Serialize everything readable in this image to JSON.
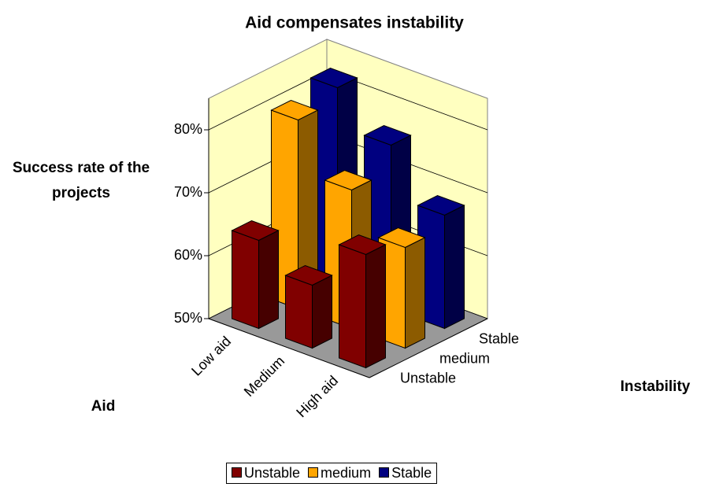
{
  "chart_data": {
    "type": "bar3d",
    "title": "Aid compensates instability",
    "y_label": "Success rate of the projects",
    "x_label": "Aid",
    "z_label": "Instability",
    "categories": [
      "Low aid",
      "Medium",
      "High aid"
    ],
    "series": [
      {
        "name": "Unstable",
        "color": "#800000",
        "values": [
          64,
          60,
          68
        ]
      },
      {
        "name": "medium",
        "color": "#ffa500",
        "values": [
          80,
          72,
          66
        ]
      },
      {
        "name": "Stable",
        "color": "#000080",
        "values": [
          82,
          76,
          68
        ]
      }
    ],
    "ylim": [
      50,
      85
    ],
    "yticks": [
      {
        "value": 50,
        "label": "50%"
      },
      {
        "value": 60,
        "label": "60%"
      },
      {
        "value": 70,
        "label": "70%"
      },
      {
        "value": 80,
        "label": "80%"
      }
    ],
    "grid": true
  }
}
